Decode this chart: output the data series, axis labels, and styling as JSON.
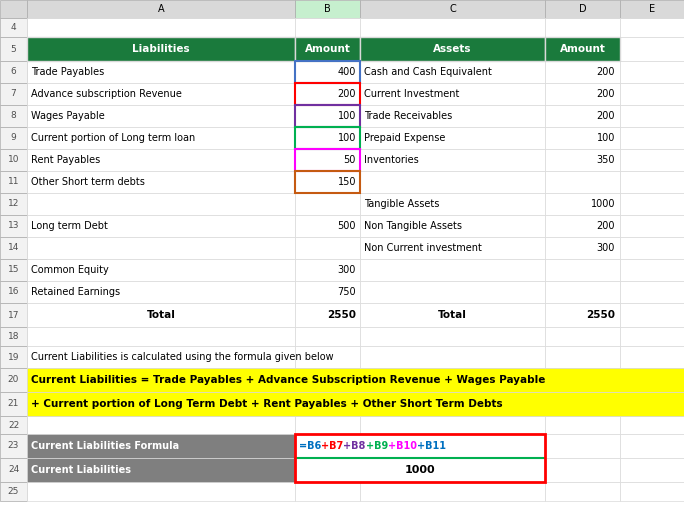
{
  "fig_width": 6.84,
  "fig_height": 5.27,
  "bg_color": "#ffffff",
  "col_header_bg": "#1a7a3c",
  "header_liabilities": "Liabilities",
  "header_amount": "Amount",
  "header_assets": "Assets",
  "liabilities_rows": [
    {
      "row": 6,
      "label": "Trade Payables",
      "value": "400"
    },
    {
      "row": 7,
      "label": "Advance subscription Revenue",
      "value": "200"
    },
    {
      "row": 8,
      "label": "Wages Payable",
      "value": "100"
    },
    {
      "row": 9,
      "label": "Current portion of Long term loan",
      "value": "100"
    },
    {
      "row": 10,
      "label": "Rent Payables",
      "value": "50"
    },
    {
      "row": 11,
      "label": "Other Short term debts",
      "value": "150"
    },
    {
      "row": 12,
      "label": "",
      "value": ""
    },
    {
      "row": 13,
      "label": "Long term Debt",
      "value": "500"
    },
    {
      "row": 14,
      "label": "",
      "value": ""
    },
    {
      "row": 15,
      "label": "Common Equity",
      "value": "300"
    },
    {
      "row": 16,
      "label": "Retained Earnings",
      "value": "750"
    }
  ],
  "assets_rows": [
    {
      "row": 6,
      "label": "Cash and Cash Equivalent",
      "value": "200"
    },
    {
      "row": 7,
      "label": "Current Investment",
      "value": "200"
    },
    {
      "row": 8,
      "label": "Trade Receivables",
      "value": "200"
    },
    {
      "row": 9,
      "label": "Prepaid Expense",
      "value": "100"
    },
    {
      "row": 10,
      "label": "Inventories",
      "value": "350"
    },
    {
      "row": 11,
      "label": "",
      "value": ""
    },
    {
      "row": 12,
      "label": "Tangible Assets",
      "value": "1000"
    },
    {
      "row": 13,
      "label": "Non Tangible Assets",
      "value": "200"
    },
    {
      "row": 14,
      "label": "Non Current investment",
      "value": "300"
    }
  ],
  "total_liabilities": "2550",
  "total_assets": "2550",
  "note_text": "Current Liabilities is calculated using the formula given below",
  "formula_text1": "Current Liabilities = Trade Payables + Advance Subscription Revenue + Wages Payable",
  "formula_text2": "+ Current portion of Long Term Debt + Rent Payables + Other Short Term Debts",
  "formula_bg": "#ffff00",
  "cl_label1": "Current Liabilities Formula",
  "cl_label2": "Current Liabilities",
  "cl_result": "1000",
  "cl_label_bg": "#7f7f7f",
  "cl_label_text": "#ffffff",
  "cl_formula_colors": [
    "#0070c0",
    "#ff0000",
    "#7030a0",
    "#00b050",
    "#ff00ff",
    "#0070c0"
  ],
  "cl_formula_parts": [
    "=B6",
    "+B7",
    "+B8",
    "+B9",
    "+B10",
    "+B11"
  ],
  "red_border_color": "#ff0000",
  "green_line_color": "#00b050",
  "b6_border_color": "#4472c4",
  "b7_border_color": "#ff0000",
  "b8_border_color": "#7030a0",
  "b9_border_color": "#00b050",
  "b10_border_color": "#ff00ff",
  "b11_border_color": "#c55a11",
  "grid_color": "#d9d9d9",
  "col_letter_header_bg": "#d9d9d9",
  "col_letter_header_bg_b": "#c6efce",
  "row_num_bg": "#f2f2f2"
}
